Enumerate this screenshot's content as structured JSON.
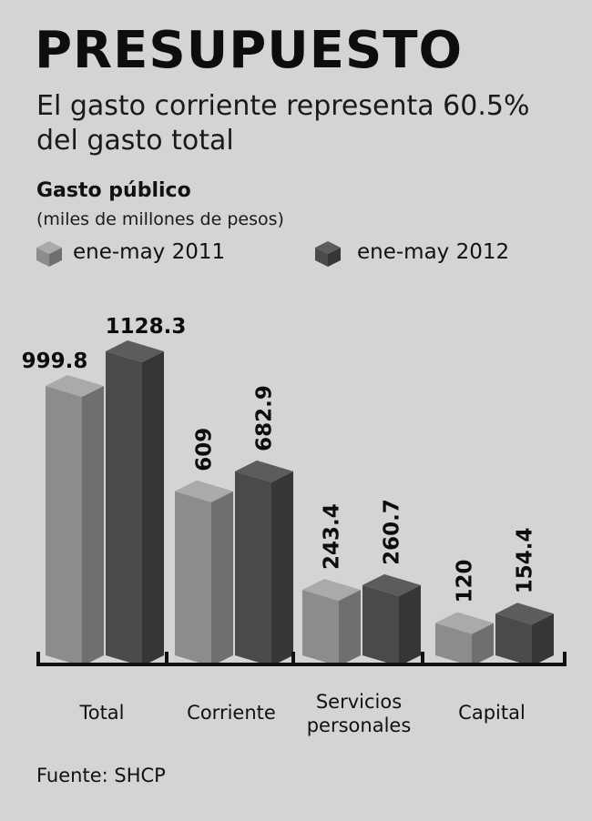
{
  "header": {
    "title": "PRESUPUESTO",
    "subtitle_line1": "El gasto corriente representa 60.5%",
    "subtitle_line2": "del gasto total"
  },
  "chart_data": {
    "type": "bar",
    "title": "Gasto público",
    "units": "(miles de millones de pesos)",
    "categories": [
      [
        "Total"
      ],
      [
        "Corriente"
      ],
      [
        "Servicios",
        "personales"
      ],
      [
        "Capital"
      ]
    ],
    "series": [
      {
        "name": "ene-may 2011",
        "values": [
          999.8,
          609,
          243.4,
          120
        ],
        "labels": [
          "999.8",
          "609",
          "243.4",
          "120"
        ]
      },
      {
        "name": "ene-may 2012",
        "values": [
          1128.3,
          682.9,
          260.7,
          154.4
        ],
        "labels": [
          "1128.3",
          "682.9",
          "260.7",
          "154.4"
        ]
      }
    ],
    "colors": {
      "s0_top": "#aaaaaa",
      "s0_front": "#8c8c8c",
      "s0_side": "#6f6f6f",
      "s1_top": "#5c5c5c",
      "s1_front": "#4a4a4a",
      "s1_side": "#363636"
    },
    "legend_position": "top-left",
    "grid": false
  },
  "footer": {
    "source": "Fuente: SHCP"
  }
}
